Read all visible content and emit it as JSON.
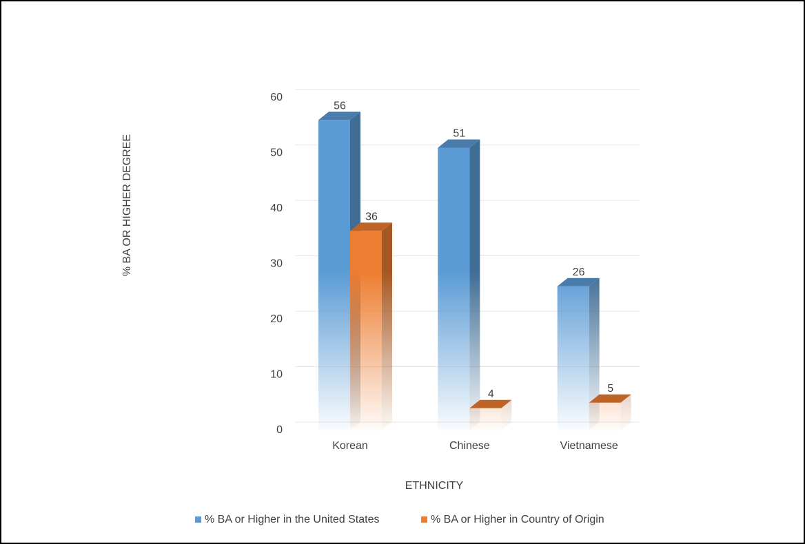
{
  "chart_data": {
    "type": "bar3d",
    "x_label": "ETHNICITY",
    "y_label": "% BA OR HIGHER DEGREE",
    "categories": [
      "Korean",
      "Chinese",
      "Vietnamese"
    ],
    "series": [
      {
        "name": "% BA or Higher in the United States",
        "color": "#5b9bd5",
        "values": [
          56,
          51,
          26
        ]
      },
      {
        "name": "% BA or Higher in Country of Origin",
        "color": "#ed7d31",
        "values": [
          36,
          4,
          5
        ]
      }
    ],
    "ylim": [
      0,
      60
    ],
    "yticks": [
      0,
      10,
      20,
      30,
      40,
      50,
      60
    ],
    "grid": true,
    "legend": "bottom"
  }
}
